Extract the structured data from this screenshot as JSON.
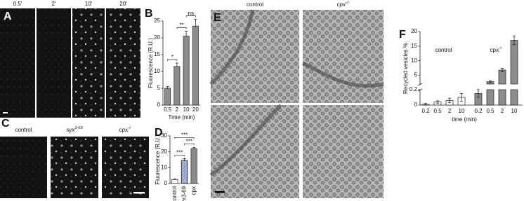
{
  "panels": {
    "A": {
      "letter": "A",
      "times": [
        "0.5'",
        "2'",
        "10'",
        "20'"
      ]
    },
    "C": {
      "letter": "C",
      "labels": [
        {
          "text": "control"
        },
        {
          "text": "syx",
          "sup": "3-69"
        },
        {
          "text": "cpx",
          "sup": "-/-"
        }
      ]
    },
    "E": {
      "letter": "E",
      "labels": [
        {
          "text": "control"
        },
        {
          "text": "cpx",
          "sup": "-/-"
        }
      ]
    }
  },
  "chart_data": [
    {
      "type": "bar",
      "letter": "B",
      "ylabel": "Fluorescence (R.U.)",
      "xlabel": "Time (min)",
      "categories": [
        "0.5",
        "2",
        "10",
        "20"
      ],
      "values": [
        5,
        11.5,
        20.5,
        23.5
      ],
      "errors": [
        0.5,
        1,
        1.5,
        2
      ],
      "color": "#8c8c8c",
      "ylim": [
        0,
        25
      ],
      "yticks": [
        0,
        5,
        10,
        15,
        20,
        25
      ],
      "significance": [
        "*",
        "**",
        "ns"
      ]
    },
    {
      "type": "bar",
      "letter": "D",
      "ylabel": "Fluorescence (R.U.)",
      "categories": [
        "control",
        "syx3-69",
        "cpx"
      ],
      "values": [
        2.5,
        14.5,
        22
      ],
      "errors": [
        0.3,
        1.2,
        0.8
      ],
      "colors": [
        "#ffffff",
        "#b3bce0",
        "#8c8c8c"
      ],
      "hatch": [
        false,
        true,
        false
      ],
      "ylim": [
        0,
        30
      ],
      "yticks": [
        0,
        10,
        20,
        30
      ],
      "significance": [
        "***",
        "***",
        "***"
      ]
    },
    {
      "type": "broken-bar",
      "letter": "F",
      "ylabel": "Recycled vesicles %",
      "xlabel": "time (min)",
      "categories": [
        "0.2",
        "0.5",
        "2",
        "10"
      ],
      "series": [
        {
          "name": "control",
          "color": "#ffffff",
          "values": [
            0.01,
            0.04,
            0.06,
            0.1
          ],
          "errors": [
            0.01,
            0.015,
            0.03,
            0.05
          ]
        },
        {
          "name": "cpx",
          "name_sup": "-/-",
          "color": "#8c8c8c",
          "values": [
            0.15,
            2.8,
            6.8,
            17
          ],
          "errors": [
            0.05,
            0.3,
            0.6,
            1.5
          ]
        }
      ],
      "lower_ylim": [
        0,
        0.2
      ],
      "lower_yticks": [
        0,
        0.2
      ],
      "ylim": [
        2,
        20
      ],
      "yticks": [
        5,
        10,
        15,
        20
      ]
    }
  ]
}
